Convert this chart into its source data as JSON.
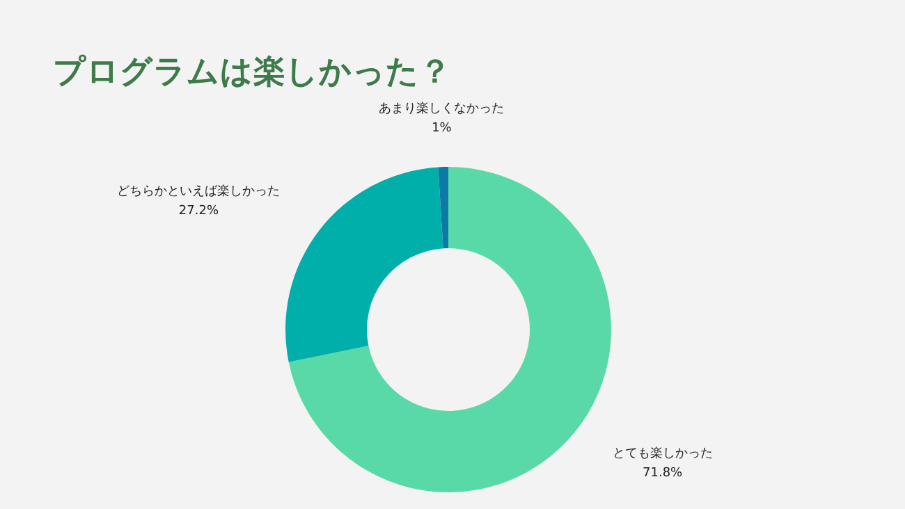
{
  "chart_data": {
    "type": "donut",
    "title": "プログラムは楽しかった？",
    "categories": [
      "とても楽しかった",
      "どちらかといえば楽しかった",
      "あまり楽しくなかった"
    ],
    "values": [
      71.8,
      27.2,
      1
    ],
    "value_labels": [
      "71.8%",
      "27.2%",
      "1%"
    ],
    "colors": [
      "#5ad9a8",
      "#00afaa",
      "#0d79a6"
    ]
  }
}
